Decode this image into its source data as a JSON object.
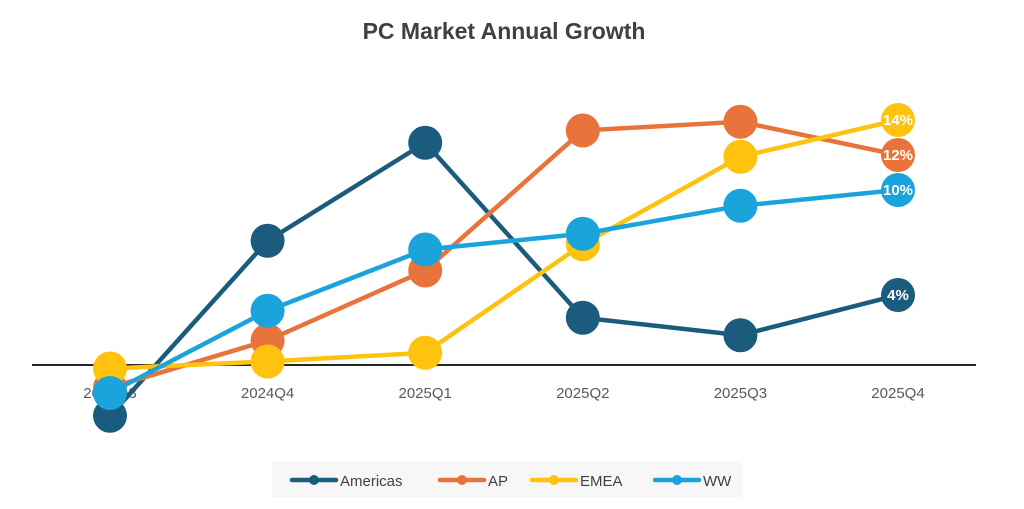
{
  "chart_data": {
    "type": "line",
    "title": "PC Market Annual Growth",
    "categories": [
      "2024Q3",
      "2024Q4",
      "2025Q1",
      "2025Q2",
      "2025Q3",
      "2025Q4"
    ],
    "unit": "%",
    "series": [
      {
        "name": "Americas",
        "color": "#1B5B7E",
        "values": [
          -2.9,
          7.1,
          12.7,
          2.7,
          1.7,
          4
        ]
      },
      {
        "name": "AP",
        "color": "#E8743B",
        "values": [
          -1.3,
          1.4,
          5.4,
          13.4,
          13.9,
          12
        ]
      },
      {
        "name": "EMEA",
        "color": "#FFC20E",
        "values": [
          -0.2,
          0.2,
          0.7,
          6.9,
          11.9,
          14
        ]
      },
      {
        "name": "WW",
        "color": "#1BA3DC",
        "values": [
          -1.6,
          3.1,
          6.6,
          7.5,
          9.1,
          10
        ]
      }
    ],
    "data_labels": [
      "4%",
      "12%",
      "14%",
      "10%"
    ],
    "legend_position": "bottom",
    "grid": false
  }
}
